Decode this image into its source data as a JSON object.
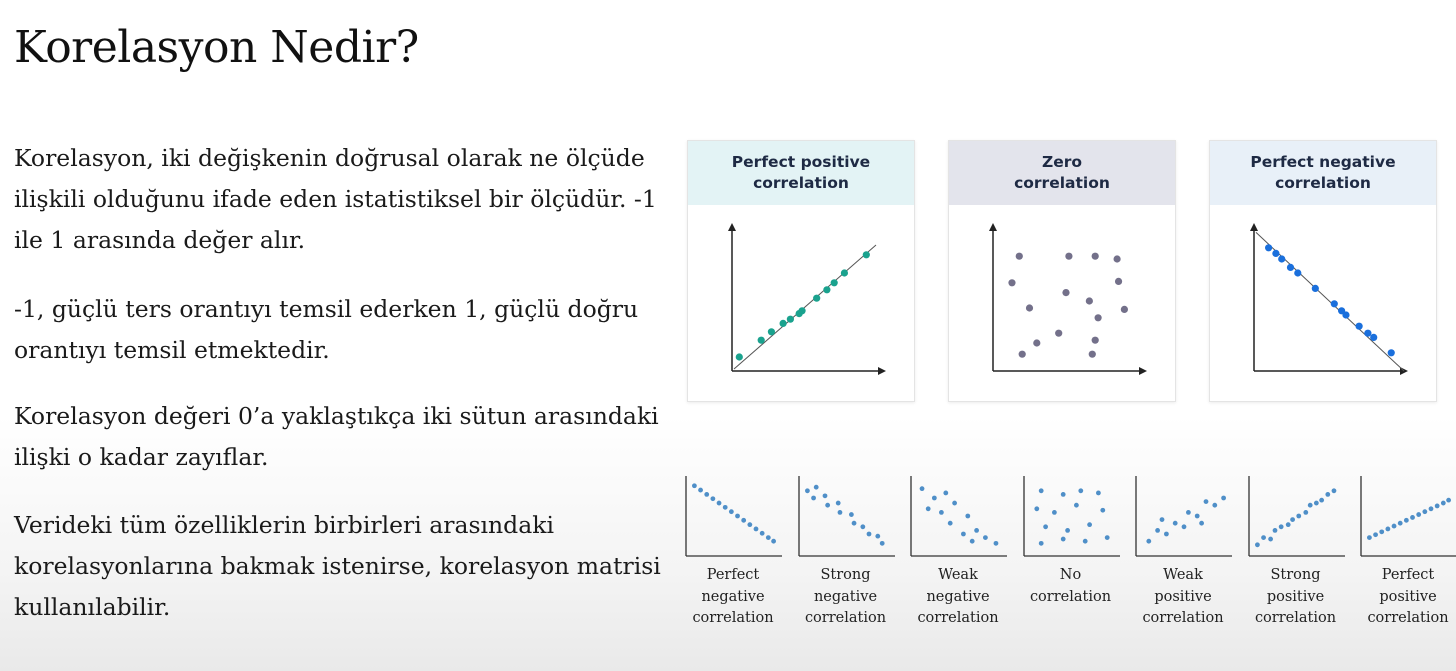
{
  "title": "Korelasyon Nedir?",
  "paragraphs": [
    "Korelasyon, iki değişkenin doğrusal olarak ne ölçüde ilişkili olduğunu ifade eden istatistiksel bir ölçüdür. -1 ile 1 arasında değer alır.",
    "-1, güçlü ters orantıyı temsil ederken 1, güçlü doğru orantıyı temsil etmektedir.",
    "Korelasyon değeri 0’a yaklaştıkça iki sütun arasındaki ilişki o kadar zayıflar.",
    "Verideki tüm özelliklerin birbirleri arasındaki korelasyonlarına bakmak istenirse, korelasyon matrisi kullanılabilir."
  ],
  "cards": [
    {
      "title_line1": "Perfect positive",
      "title_line2": "correlation",
      "header_color": "#e3f3f5",
      "dot_color": "#1aa28e",
      "kind": "positive",
      "points": [
        [
          0.05,
          0.1
        ],
        [
          0.2,
          0.22
        ],
        [
          0.27,
          0.28
        ],
        [
          0.35,
          0.34
        ],
        [
          0.4,
          0.37
        ],
        [
          0.46,
          0.41
        ],
        [
          0.48,
          0.43
        ],
        [
          0.58,
          0.52
        ],
        [
          0.65,
          0.58
        ],
        [
          0.7,
          0.63
        ],
        [
          0.77,
          0.7
        ],
        [
          0.92,
          0.83
        ]
      ]
    },
    {
      "title_line1": "Zero",
      "title_line2": "correlation",
      "header_color": "#e3e4ec",
      "dot_color": "#73708a",
      "kind": "zero",
      "points": [
        [
          0.18,
          0.82
        ],
        [
          0.52,
          0.82
        ],
        [
          0.7,
          0.82
        ],
        [
          0.85,
          0.8
        ],
        [
          0.13,
          0.63
        ],
        [
          0.5,
          0.56
        ],
        [
          0.66,
          0.5
        ],
        [
          0.86,
          0.64
        ],
        [
          0.9,
          0.44
        ],
        [
          0.25,
          0.45
        ],
        [
          0.72,
          0.38
        ],
        [
          0.45,
          0.27
        ],
        [
          0.7,
          0.22
        ],
        [
          0.3,
          0.2
        ],
        [
          0.68,
          0.12
        ],
        [
          0.2,
          0.12
        ]
      ]
    },
    {
      "title_line1": "Perfect negative",
      "title_line2": "correlation",
      "header_color": "#e8f0f8",
      "dot_color": "#1a6fdc",
      "kind": "negative",
      "points": [
        [
          0.1,
          0.88
        ],
        [
          0.15,
          0.84
        ],
        [
          0.19,
          0.8
        ],
        [
          0.25,
          0.74
        ],
        [
          0.3,
          0.7
        ],
        [
          0.42,
          0.59
        ],
        [
          0.55,
          0.48
        ],
        [
          0.6,
          0.43
        ],
        [
          0.63,
          0.4
        ],
        [
          0.72,
          0.32
        ],
        [
          0.78,
          0.27
        ],
        [
          0.82,
          0.24
        ],
        [
          0.94,
          0.13
        ]
      ]
    }
  ],
  "small_charts": [
    {
      "label_lines": [
        "Perfect",
        "negative",
        "correlation"
      ],
      "points": [
        [
          0.05,
          0.92
        ],
        [
          0.12,
          0.86
        ],
        [
          0.19,
          0.8
        ],
        [
          0.26,
          0.74
        ],
        [
          0.33,
          0.68
        ],
        [
          0.4,
          0.62
        ],
        [
          0.47,
          0.56
        ],
        [
          0.54,
          0.5
        ],
        [
          0.61,
          0.44
        ],
        [
          0.68,
          0.38
        ],
        [
          0.75,
          0.32
        ],
        [
          0.82,
          0.26
        ],
        [
          0.89,
          0.2
        ],
        [
          0.95,
          0.15
        ]
      ]
    },
    {
      "label_lines": [
        "Strong",
        "negative",
        "correlation"
      ],
      "points": [
        [
          0.05,
          0.85
        ],
        [
          0.15,
          0.9
        ],
        [
          0.12,
          0.75
        ],
        [
          0.25,
          0.78
        ],
        [
          0.28,
          0.65
        ],
        [
          0.4,
          0.68
        ],
        [
          0.42,
          0.55
        ],
        [
          0.55,
          0.52
        ],
        [
          0.58,
          0.4
        ],
        [
          0.68,
          0.35
        ],
        [
          0.75,
          0.25
        ],
        [
          0.85,
          0.22
        ],
        [
          0.9,
          0.12
        ]
      ]
    },
    {
      "label_lines": [
        "Weak",
        "negative",
        "correlation"
      ],
      "points": [
        [
          0.08,
          0.88
        ],
        [
          0.22,
          0.75
        ],
        [
          0.35,
          0.82
        ],
        [
          0.15,
          0.6
        ],
        [
          0.3,
          0.55
        ],
        [
          0.45,
          0.68
        ],
        [
          0.6,
          0.5
        ],
        [
          0.4,
          0.4
        ],
        [
          0.7,
          0.3
        ],
        [
          0.55,
          0.25
        ],
        [
          0.8,
          0.2
        ],
        [
          0.65,
          0.15
        ],
        [
          0.92,
          0.12
        ]
      ]
    },
    {
      "label_lines": [
        "No",
        "correlation"
      ],
      "points": [
        [
          0.15,
          0.85
        ],
        [
          0.4,
          0.8
        ],
        [
          0.6,
          0.85
        ],
        [
          0.8,
          0.82
        ],
        [
          0.1,
          0.6
        ],
        [
          0.3,
          0.55
        ],
        [
          0.55,
          0.65
        ],
        [
          0.85,
          0.58
        ],
        [
          0.2,
          0.35
        ],
        [
          0.45,
          0.3
        ],
        [
          0.7,
          0.38
        ],
        [
          0.15,
          0.12
        ],
        [
          0.4,
          0.18
        ],
        [
          0.65,
          0.15
        ],
        [
          0.9,
          0.2
        ]
      ]
    },
    {
      "label_lines": [
        "Weak",
        "positive",
        "correlation"
      ],
      "points": [
        [
          0.1,
          0.15
        ],
        [
          0.2,
          0.3
        ],
        [
          0.3,
          0.25
        ],
        [
          0.25,
          0.45
        ],
        [
          0.4,
          0.4
        ],
        [
          0.5,
          0.35
        ],
        [
          0.55,
          0.55
        ],
        [
          0.65,
          0.5
        ],
        [
          0.75,
          0.7
        ],
        [
          0.7,
          0.4
        ],
        [
          0.85,
          0.65
        ],
        [
          0.95,
          0.75
        ]
      ]
    },
    {
      "label_lines": [
        "Strong",
        "positive",
        "correlation"
      ],
      "points": [
        [
          0.05,
          0.1
        ],
        [
          0.12,
          0.2
        ],
        [
          0.2,
          0.18
        ],
        [
          0.25,
          0.3
        ],
        [
          0.32,
          0.35
        ],
        [
          0.4,
          0.38
        ],
        [
          0.45,
          0.45
        ],
        [
          0.52,
          0.5
        ],
        [
          0.6,
          0.55
        ],
        [
          0.65,
          0.65
        ],
        [
          0.72,
          0.68
        ],
        [
          0.78,
          0.72
        ],
        [
          0.85,
          0.8
        ],
        [
          0.92,
          0.85
        ]
      ]
    },
    {
      "label_lines": [
        "Perfect",
        "positive",
        "correlation"
      ],
      "points": [
        [
          0.05,
          0.2
        ],
        [
          0.12,
          0.24
        ],
        [
          0.19,
          0.28
        ],
        [
          0.26,
          0.32
        ],
        [
          0.33,
          0.36
        ],
        [
          0.4,
          0.4
        ],
        [
          0.47,
          0.44
        ],
        [
          0.54,
          0.48
        ],
        [
          0.61,
          0.52
        ],
        [
          0.68,
          0.56
        ],
        [
          0.75,
          0.6
        ],
        [
          0.82,
          0.64
        ],
        [
          0.89,
          0.68
        ],
        [
          0.95,
          0.72
        ]
      ]
    }
  ],
  "small_dot_color": "#4f8fc8"
}
